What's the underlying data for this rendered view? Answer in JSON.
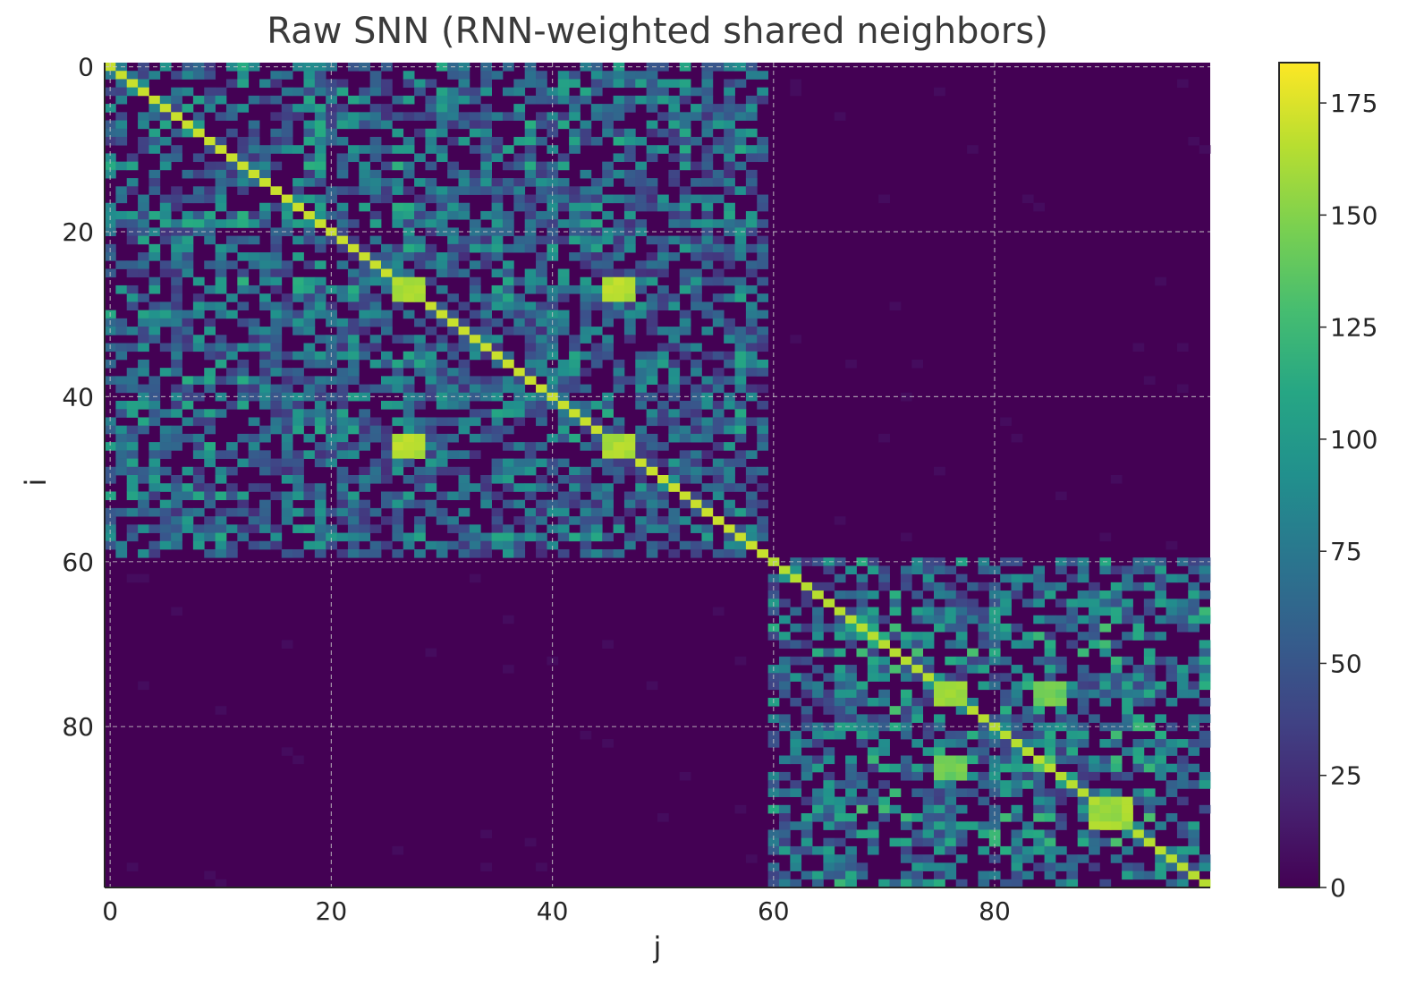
{
  "chart_data": {
    "type": "heatmap",
    "title": "Raw SNN (RNN-weighted shared neighbors)",
    "xlabel": "j",
    "ylabel": "i",
    "n": 100,
    "xlim": [
      -0.5,
      99.5
    ],
    "ylim": [
      99.5,
      -0.5
    ],
    "x_ticks": [
      0,
      20,
      40,
      60,
      80
    ],
    "y_ticks": [
      0,
      20,
      40,
      60,
      80
    ],
    "grid": true,
    "colormap": "viridis",
    "colorbar": {
      "min": 0,
      "max": 184,
      "ticks": [
        0,
        25,
        50,
        75,
        100,
        125,
        150,
        175
      ]
    },
    "blocks": [
      {
        "name": "",
        "start": 0,
        "end": 59,
        "diagonal_value": 170,
        "typical_value": 95
      },
      {
        "name": "",
        "start": 60,
        "end": 99,
        "diagonal_value": 165,
        "typical_value": 110
      }
    ],
    "bright_clusters": [
      {
        "rows": [
          26,
          28
        ],
        "cols": [
          26,
          28
        ],
        "value": 172
      },
      {
        "rows": [
          26,
          28
        ],
        "cols": [
          45,
          47
        ],
        "value": 170
      },
      {
        "rows": [
          45,
          47
        ],
        "cols": [
          26,
          28
        ],
        "value": 170
      },
      {
        "rows": [
          45,
          47
        ],
        "cols": [
          45,
          47
        ],
        "value": 168
      },
      {
        "rows": [
          75,
          77
        ],
        "cols": [
          75,
          77
        ],
        "value": 168
      },
      {
        "rows": [
          84,
          86
        ],
        "cols": [
          75,
          77
        ],
        "value": 150
      },
      {
        "rows": [
          75,
          77
        ],
        "cols": [
          84,
          86
        ],
        "value": 150
      },
      {
        "rows": [
          89,
          92
        ],
        "cols": [
          89,
          92
        ],
        "value": 165
      }
    ],
    "off_block_value": 0
  },
  "colors": {
    "viridis_low": "#440154",
    "viridis_high": "#fde725",
    "grid": "#c8c8c8"
  }
}
